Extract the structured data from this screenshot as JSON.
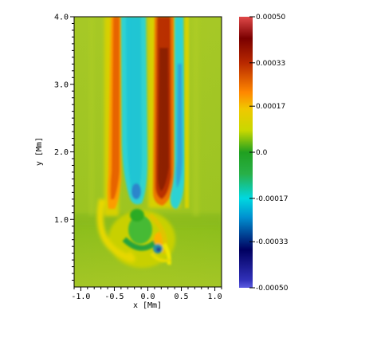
{
  "chart_data": {
    "type": "heatmap",
    "title": "",
    "xlabel": "x [Mm]",
    "ylabel": "y [Mm]",
    "xlim": [
      -1.1,
      1.1
    ],
    "ylim": [
      0.0,
      4.0
    ],
    "x_ticks": [
      "-1.0",
      "-0.5",
      "0.0",
      "0.5",
      "1.0"
    ],
    "x_tick_values": [
      -1.0,
      -0.5,
      0.0,
      0.5,
      1.0
    ],
    "y_ticks": [
      "1.0",
      "2.0",
      "3.0",
      "4.0"
    ],
    "y_tick_values": [
      1.0,
      2.0,
      3.0,
      4.0
    ],
    "colorbar": {
      "range": [
        -0.0005,
        0.0005
      ],
      "tick_labels": [
        "0.00050",
        "0.00033",
        "0.00017",
        "0.0",
        "-0.00017",
        "-0.00033",
        "-0.00050"
      ],
      "tick_values": [
        0.0005,
        0.00033,
        0.00017,
        0.0,
        -0.00017,
        -0.00033,
        -0.0005
      ],
      "colormap": [
        "#5050d8",
        "#000060",
        "#00c8d8",
        "#20a020",
        "#c8d800",
        "#ff9000",
        "#a01000",
        "#e04040"
      ]
    },
    "field_features": [
      {
        "name": "left positive band",
        "x": -0.25,
        "y_range": [
          1.1,
          4.0
        ],
        "value": 0.00033
      },
      {
        "name": "left negative band",
        "x": -0.1,
        "y_range": [
          1.3,
          4.0
        ],
        "value": -0.00025
      },
      {
        "name": "right positive band",
        "x": 0.2,
        "y_range": [
          1.2,
          4.0
        ],
        "value": 0.00043
      },
      {
        "name": "right negative band",
        "x": 0.38,
        "y_range": [
          1.1,
          4.0
        ],
        "value": -0.00028
      },
      {
        "name": "outer right positive band",
        "x": 0.48,
        "y_range": [
          1.0,
          4.0
        ],
        "value": 0.00012
      },
      {
        "name": "lower loop",
        "x": 0.05,
        "y_range": [
          0.4,
          1.0
        ],
        "value": -0.00012
      },
      {
        "name": "bottom tip",
        "x": 0.28,
        "y_range": [
          0.4,
          0.6
        ],
        "value": -0.00045
      }
    ]
  }
}
